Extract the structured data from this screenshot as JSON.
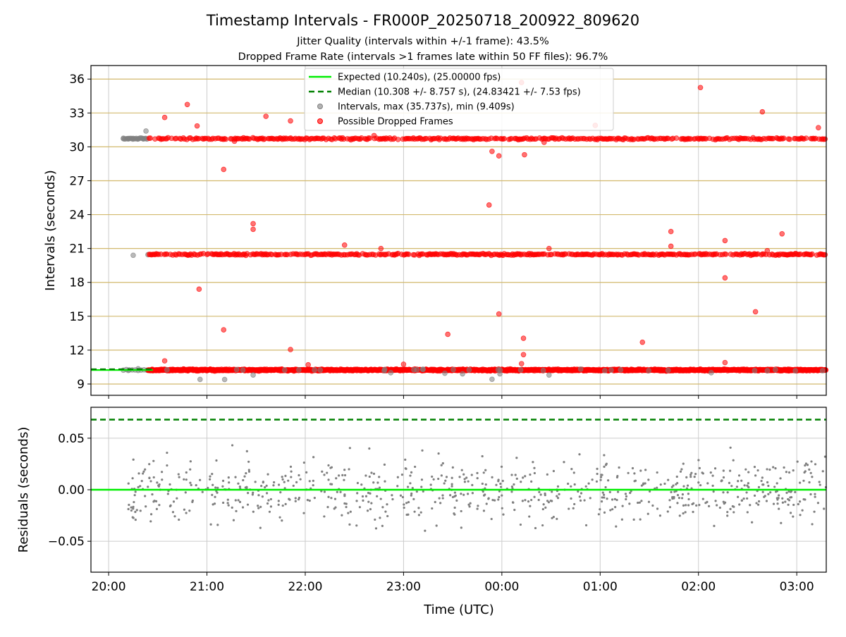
{
  "chart_data": {
    "type": "scatter",
    "title": "Timestamp Intervals - FR000P_20250718_200922_809620",
    "subtitle_lines": [
      "Jitter Quality (intervals within +/-1 frame): 43.5%",
      "Dropped Frame Rate (intervals >1 frames late within 50 FF files): 96.7%"
    ],
    "xlabel": "Time (UTC)",
    "x_ticks": [
      "20:00",
      "21:00",
      "22:00",
      "23:00",
      "00:00",
      "01:00",
      "02:00",
      "03:00"
    ],
    "top_panel": {
      "ylabel": "Intervals (seconds)",
      "ylim": [
        8.0,
        37.2
      ],
      "y_ticks": [
        "9",
        "12",
        "15",
        "18",
        "21",
        "24",
        "27",
        "30",
        "33",
        "36"
      ],
      "grid": "horizontal tan lines + vertical gray lines",
      "legend": {
        "placement": "top-center",
        "entries": [
          {
            "label": "Expected (10.240s), (25.00000 fps)",
            "style": "solid line",
            "color": "#00ee00"
          },
          {
            "label": "Median (10.308 +/- 8.757 s), (24.83421 +/- 7.53 fps)",
            "style": "dashed line",
            "color": "#008000"
          },
          {
            "label": "Intervals, max (35.737s), min (9.409s)",
            "style": "marker",
            "color": "#808080"
          },
          {
            "label": "Possible Dropped Frames",
            "style": "marker",
            "color": "#ff0000"
          }
        ]
      },
      "expected_interval": 10.24,
      "median_interval": 10.308,
      "interval_bands": [
        {
          "value": 10.24,
          "from_hour": 20.4,
          "to_hour": 27.3
        },
        {
          "value": 20.48,
          "from_hour": 20.4,
          "to_hour": 27.3
        },
        {
          "value": 30.72,
          "from_hour": 20.4,
          "to_hour": 27.3
        }
      ],
      "early_normal_intervals": [
        {
          "hour": 20.15,
          "value": 30.72
        },
        {
          "hour": 20.2,
          "value": 30.7
        },
        {
          "hour": 20.25,
          "value": 30.75
        },
        {
          "hour": 20.3,
          "value": 30.7
        },
        {
          "hour": 20.35,
          "value": 30.72
        },
        {
          "hour": 20.38,
          "value": 31.4
        },
        {
          "hour": 20.25,
          "value": 20.4
        },
        {
          "hour": 20.4,
          "value": 20.45
        },
        {
          "hour": 20.3,
          "value": 10.35
        },
        {
          "hour": 20.2,
          "value": 10.2
        }
      ],
      "low_outliers": [
        {
          "hour": 20.93,
          "value": 9.41
        },
        {
          "hour": 21.18,
          "value": 9.4
        },
        {
          "hour": 21.47,
          "value": 9.8
        },
        {
          "hour": 22.87,
          "value": 10.0
        },
        {
          "hour": 23.42,
          "value": 9.95
        },
        {
          "hour": 23.6,
          "value": 9.9
        },
        {
          "hour": 23.9,
          "value": 9.42
        },
        {
          "hour": 23.98,
          "value": 9.9
        },
        {
          "hour": 24.48,
          "value": 9.8
        },
        {
          "hour": 26.13,
          "value": 10.0
        }
      ],
      "dropped_outliers": [
        {
          "hour": 20.57,
          "value": 32.6
        },
        {
          "hour": 20.8,
          "value": 33.75
        },
        {
          "hour": 20.9,
          "value": 31.85
        },
        {
          "hour": 21.17,
          "value": 28.0
        },
        {
          "hour": 21.28,
          "value": 30.5
        },
        {
          "hour": 21.6,
          "value": 32.7
        },
        {
          "hour": 21.85,
          "value": 32.3
        },
        {
          "hour": 22.7,
          "value": 31.0
        },
        {
          "hour": 23.9,
          "value": 29.6
        },
        {
          "hour": 23.97,
          "value": 29.2
        },
        {
          "hour": 24.2,
          "value": 35.7
        },
        {
          "hour": 24.23,
          "value": 29.3
        },
        {
          "hour": 24.43,
          "value": 30.4
        },
        {
          "hour": 24.95,
          "value": 31.9
        },
        {
          "hour": 26.02,
          "value": 35.25
        },
        {
          "hour": 26.65,
          "value": 33.1
        },
        {
          "hour": 27.22,
          "value": 31.7
        },
        {
          "hour": 23.87,
          "value": 24.85
        },
        {
          "hour": 21.47,
          "value": 23.2
        },
        {
          "hour": 21.47,
          "value": 22.7
        },
        {
          "hour": 25.72,
          "value": 22.5
        },
        {
          "hour": 25.72,
          "value": 21.2
        },
        {
          "hour": 26.27,
          "value": 21.7
        },
        {
          "hour": 26.85,
          "value": 22.3
        },
        {
          "hour": 22.4,
          "value": 21.3
        },
        {
          "hour": 22.77,
          "value": 21.0
        },
        {
          "hour": 24.48,
          "value": 21.0
        },
        {
          "hour": 26.7,
          "value": 20.8
        },
        {
          "hour": 20.92,
          "value": 17.4
        },
        {
          "hour": 26.27,
          "value": 18.4
        },
        {
          "hour": 26.58,
          "value": 15.4
        },
        {
          "hour": 23.97,
          "value": 15.2
        },
        {
          "hour": 21.17,
          "value": 13.8
        },
        {
          "hour": 23.45,
          "value": 13.4
        },
        {
          "hour": 24.22,
          "value": 13.05
        },
        {
          "hour": 25.43,
          "value": 12.7
        },
        {
          "hour": 21.85,
          "value": 12.05
        },
        {
          "hour": 24.22,
          "value": 11.6
        },
        {
          "hour": 20.57,
          "value": 11.05
        },
        {
          "hour": 26.27,
          "value": 10.9
        },
        {
          "hour": 22.03,
          "value": 10.7
        },
        {
          "hour": 23.0,
          "value": 10.75
        },
        {
          "hour": 24.2,
          "value": 10.8
        }
      ]
    },
    "bottom_panel": {
      "ylabel": "Residuals (seconds)",
      "ylim": [
        -0.08,
        0.08
      ],
      "y_ticks": [
        "−0.05",
        "0.00",
        "0.05"
      ],
      "zero_line": 0.0,
      "median_dashed_line": 0.068,
      "residual_std_estimate": 0.03,
      "marker_color": "#808080"
    }
  }
}
